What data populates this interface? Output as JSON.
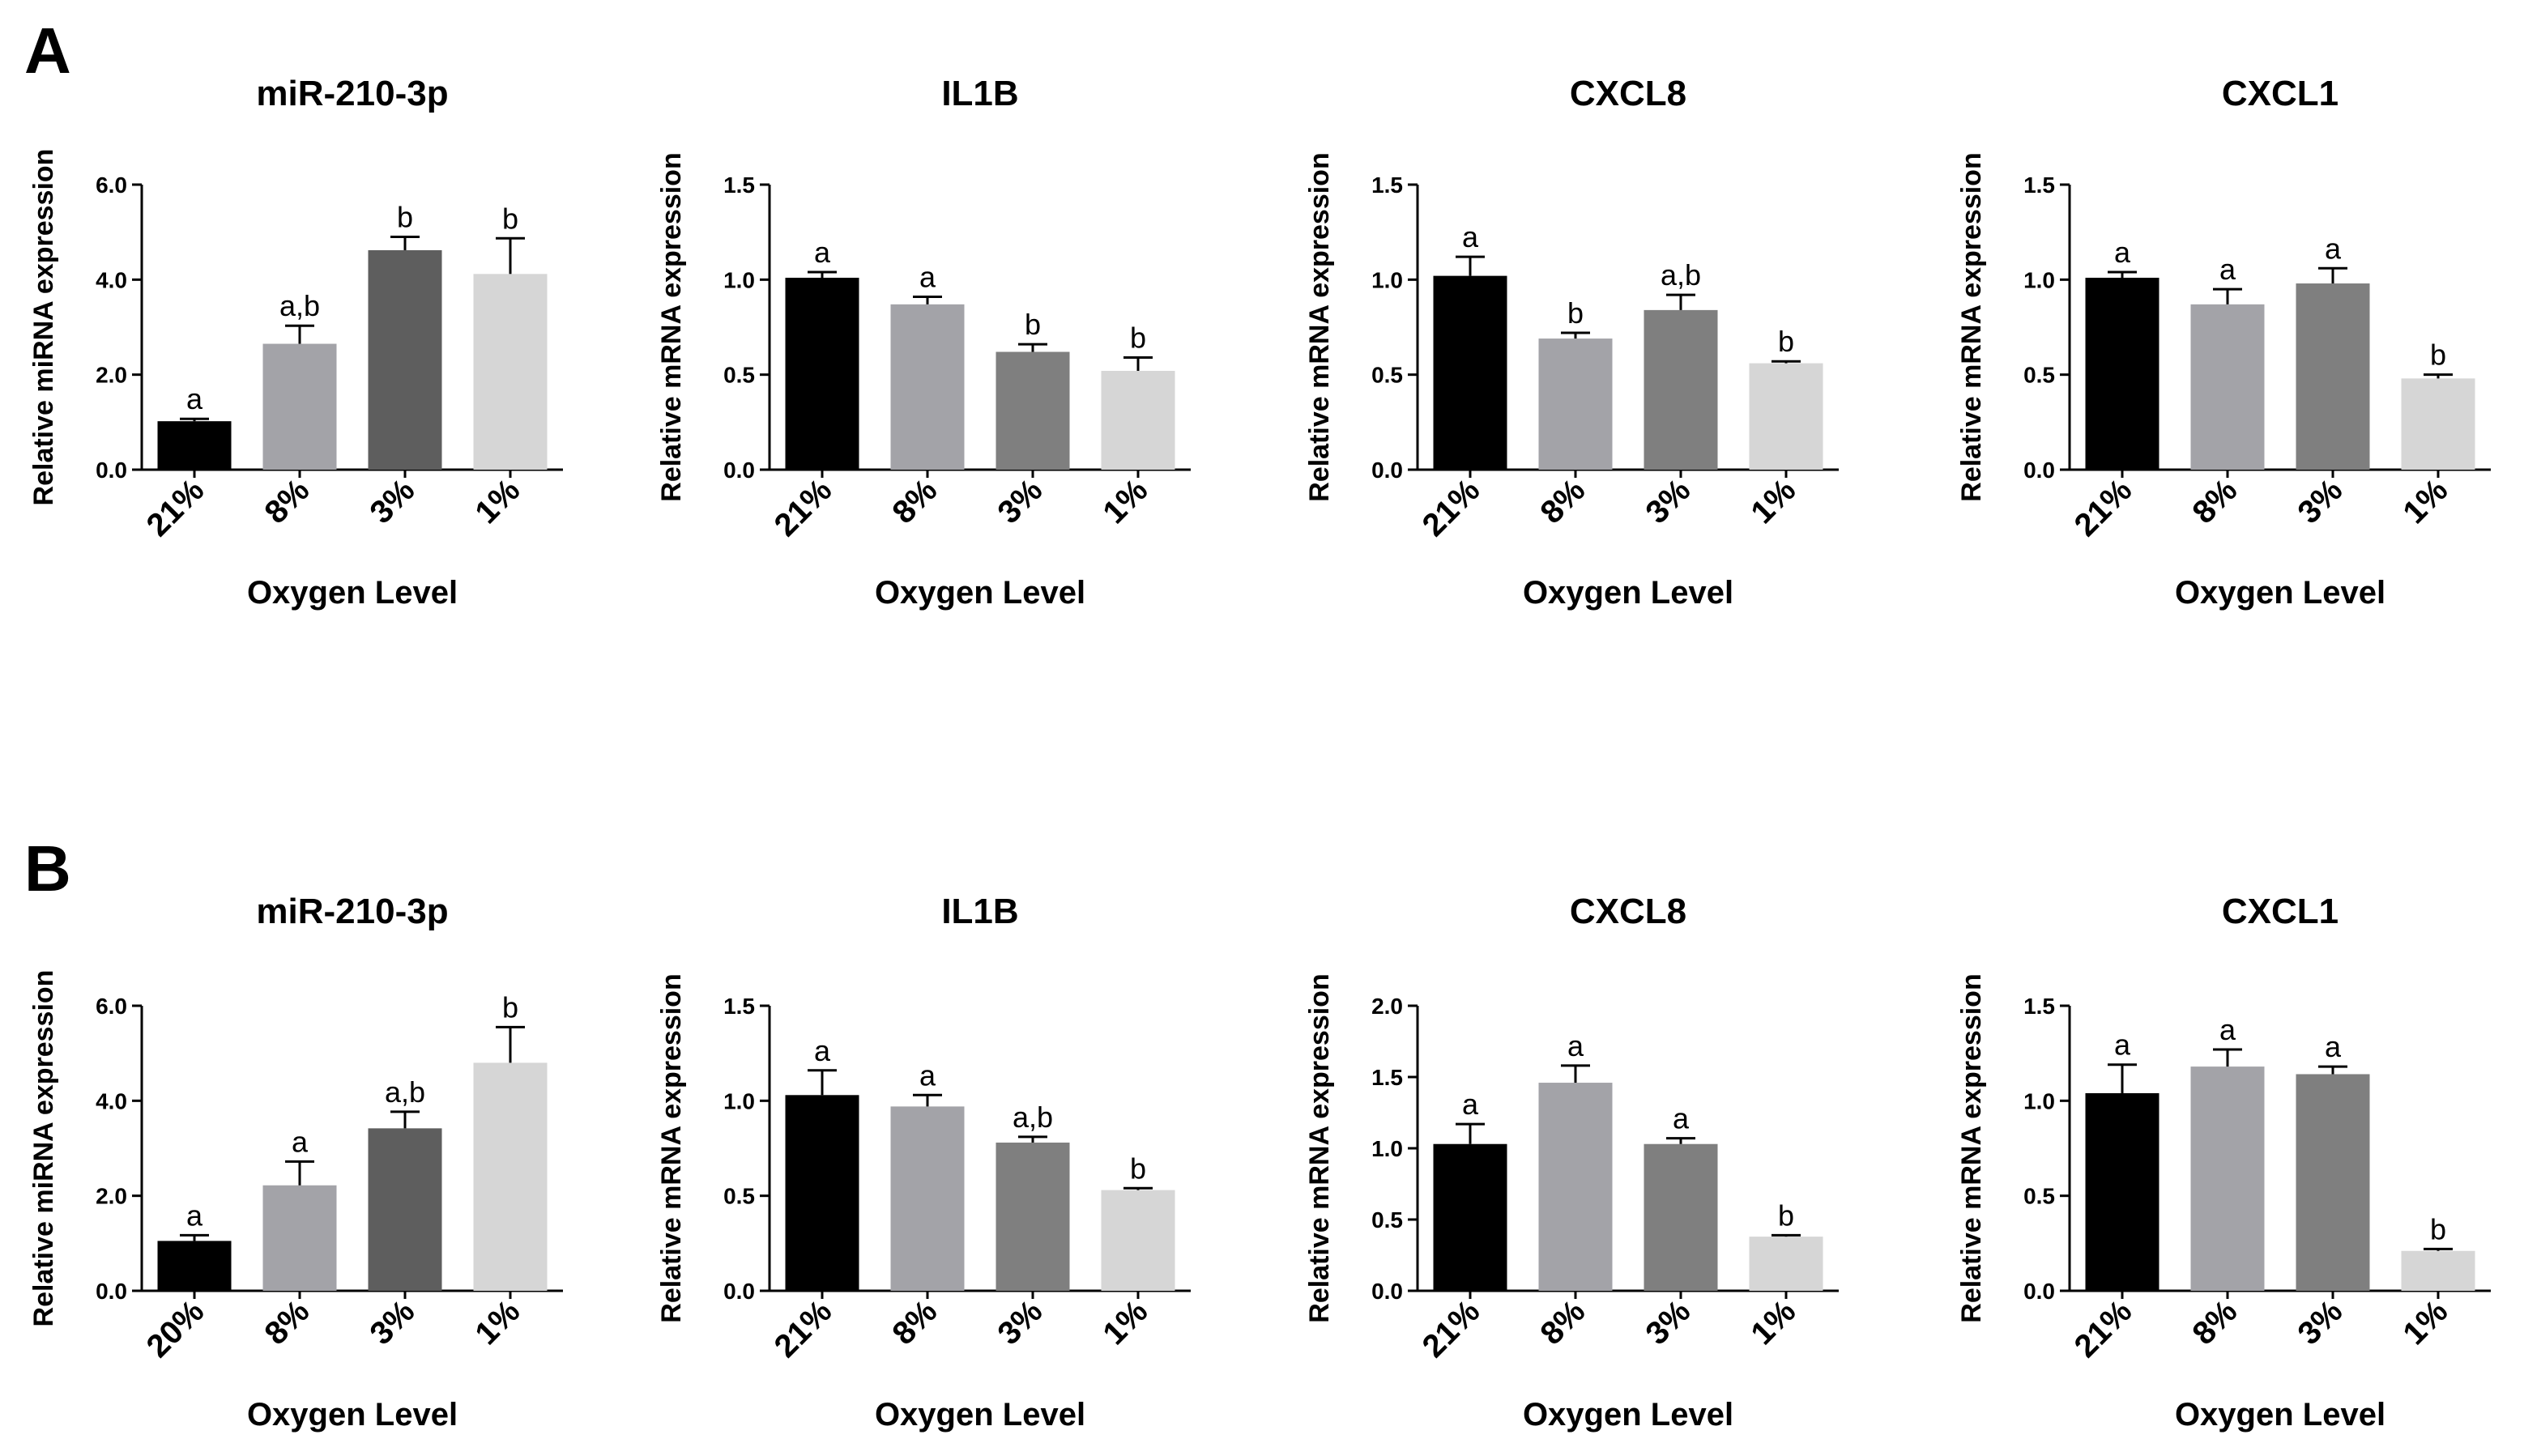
{
  "panels": [
    {
      "label": "A",
      "charts": [
        {
          "type": "bar",
          "title": "miR-210-3p",
          "xlabel": "Oxygen Level",
          "ylabel": "Relative miRNA expression",
          "ylim": [
            0,
            6.0
          ],
          "yticks": [
            "0.0",
            "2.0",
            "4.0",
            "6.0"
          ],
          "categories": [
            "21%",
            "8%",
            "3%",
            "1%"
          ],
          "values": [
            1.02,
            2.65,
            4.62,
            4.12
          ],
          "errors": [
            0.05,
            0.38,
            0.28,
            0.75
          ],
          "significance": [
            "a",
            "a,b",
            "b",
            "b"
          ],
          "colors": [
            "#000000",
            "#a3a3a8",
            "#5e5e5e",
            "#d6d6d6"
          ]
        },
        {
          "type": "bar",
          "title": "IL1B",
          "xlabel": "Oxygen Level",
          "ylabel": "Relative mRNA expression",
          "ylim": [
            0,
            1.5
          ],
          "yticks": [
            "0.0",
            "0.5",
            "1.0",
            "1.5"
          ],
          "categories": [
            "21%",
            "8%",
            "3%",
            "1%"
          ],
          "values": [
            1.01,
            0.87,
            0.62,
            0.52
          ],
          "errors": [
            0.03,
            0.04,
            0.04,
            0.07
          ],
          "significance": [
            "a",
            "a",
            "b",
            "b"
          ],
          "colors": [
            "#000000",
            "#a3a3a8",
            "#7f7f7f",
            "#d6d6d6"
          ]
        },
        {
          "type": "bar",
          "title": "CXCL8",
          "xlabel": "Oxygen Level",
          "ylabel": "Relative mRNA expression",
          "ylim": [
            0,
            1.5
          ],
          "yticks": [
            "0.0",
            "0.5",
            "1.0",
            "1.5"
          ],
          "categories": [
            "21%",
            "8%",
            "3%",
            "1%"
          ],
          "values": [
            1.02,
            0.69,
            0.84,
            0.56
          ],
          "errors": [
            0.1,
            0.03,
            0.08,
            0.01
          ],
          "significance": [
            "a",
            "b",
            "a,b",
            "b"
          ],
          "colors": [
            "#000000",
            "#a3a3a8",
            "#7f7f7f",
            "#d6d6d6"
          ]
        },
        {
          "type": "bar",
          "title": "CXCL1",
          "xlabel": "Oxygen Level",
          "ylabel": "Relative mRNA expression",
          "ylim": [
            0,
            1.5
          ],
          "yticks": [
            "0.0",
            "0.5",
            "1.0",
            "1.5"
          ],
          "categories": [
            "21%",
            "8%",
            "3%",
            "1%"
          ],
          "values": [
            1.01,
            0.87,
            0.98,
            0.48
          ],
          "errors": [
            0.03,
            0.08,
            0.08,
            0.02
          ],
          "significance": [
            "a",
            "a",
            "a",
            "b"
          ],
          "colors": [
            "#000000",
            "#a3a3a8",
            "#7f7f7f",
            "#d6d6d6"
          ]
        }
      ]
    },
    {
      "label": "B",
      "charts": [
        {
          "type": "bar",
          "title": "miR-210-3p",
          "xlabel": "Oxygen Level",
          "ylabel": "Relative miRNA expression",
          "ylim": [
            0,
            6.0
          ],
          "yticks": [
            "0.0",
            "2.0",
            "4.0",
            "6.0"
          ],
          "categories": [
            "20%",
            "8%",
            "3%",
            "1%"
          ],
          "values": [
            1.05,
            2.22,
            3.42,
            4.8
          ],
          "errors": [
            0.12,
            0.5,
            0.35,
            0.75
          ],
          "significance": [
            "a",
            "a",
            "a,b",
            "b"
          ],
          "colors": [
            "#000000",
            "#a3a3a8",
            "#5e5e5e",
            "#d6d6d6"
          ]
        },
        {
          "type": "bar",
          "title": "IL1B",
          "xlabel": "Oxygen Level",
          "ylabel": "Relative mRNA expression",
          "ylim": [
            0,
            1.5
          ],
          "yticks": [
            "0.0",
            "0.5",
            "1.0",
            "1.5"
          ],
          "categories": [
            "21%",
            "8%",
            "3%",
            "1%"
          ],
          "values": [
            1.03,
            0.97,
            0.78,
            0.53
          ],
          "errors": [
            0.13,
            0.06,
            0.03,
            0.01
          ],
          "significance": [
            "a",
            "a",
            "a,b",
            "b"
          ],
          "colors": [
            "#000000",
            "#a3a3a8",
            "#7f7f7f",
            "#d6d6d6"
          ]
        },
        {
          "type": "bar",
          "title": "CXCL8",
          "xlabel": "Oxygen Level",
          "ylabel": "Relative mRNA expression",
          "ylim": [
            0,
            2.0
          ],
          "yticks": [
            "0.0",
            "0.5",
            "1.0",
            "1.5",
            "2.0"
          ],
          "categories": [
            "21%",
            "8%",
            "3%",
            "1%"
          ],
          "values": [
            1.03,
            1.46,
            1.03,
            0.38
          ],
          "errors": [
            0.14,
            0.12,
            0.04,
            0.01
          ],
          "significance": [
            "a",
            "a",
            "a",
            "b"
          ],
          "colors": [
            "#000000",
            "#a3a3a8",
            "#7f7f7f",
            "#d6d6d6"
          ]
        },
        {
          "type": "bar",
          "title": "CXCL1",
          "xlabel": "Oxygen Level",
          "ylabel": "Relative mRNA expression",
          "ylim": [
            0,
            1.5
          ],
          "yticks": [
            "0.0",
            "0.5",
            "1.0",
            "1.5"
          ],
          "categories": [
            "21%",
            "8%",
            "3%",
            "1%"
          ],
          "values": [
            1.04,
            1.18,
            1.14,
            0.21
          ],
          "errors": [
            0.15,
            0.09,
            0.04,
            0.01
          ],
          "significance": [
            "a",
            "a",
            "a",
            "b"
          ],
          "colors": [
            "#000000",
            "#a3a3a8",
            "#7f7f7f",
            "#d6d6d6"
          ]
        }
      ]
    }
  ]
}
